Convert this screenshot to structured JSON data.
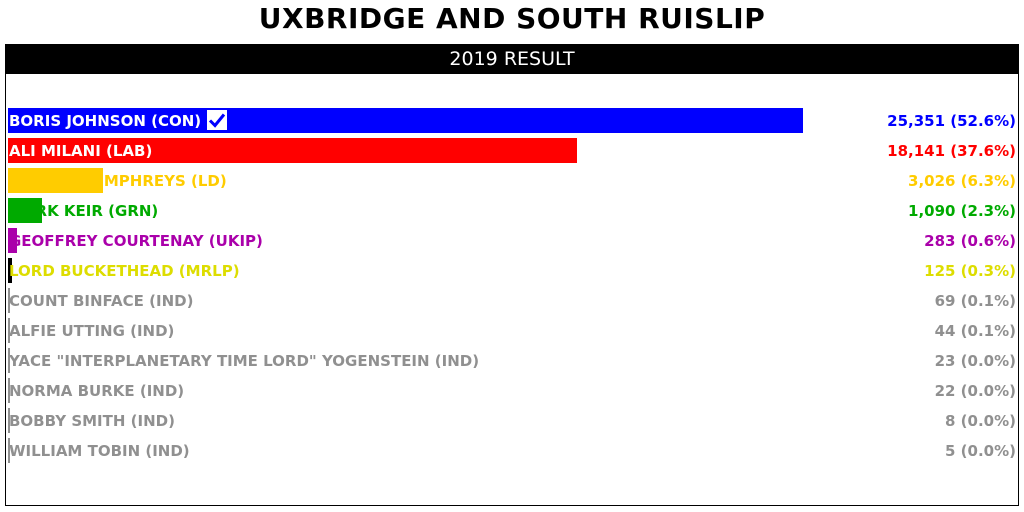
{
  "header": {
    "title": "UXBRIDGE AND SOUTH RUISLIP",
    "subtitle": "2019 RESULT"
  },
  "chart_data": {
    "type": "bar",
    "orientation": "horizontal",
    "title": "UXBRIDGE AND SOUTH RUISLIP",
    "subtitle": "2019 RESULT",
    "xlim": [
      0,
      25351
    ],
    "winner_mark": "check-icon",
    "candidates": [
      {
        "label": "BORIS JOHNSON (CON)",
        "votes": 25351,
        "value_label": "25,351 (52.6%)",
        "bar_color": "#0000ff",
        "text_color": "#ffffff",
        "value_color": "#0000ff",
        "winner": true
      },
      {
        "label": "ALI MILANI (LAB)",
        "votes": 18141,
        "value_label": "18,141 (37.6%)",
        "bar_color": "#ff0000",
        "text_color": "#ffffff",
        "value_color": "#ff0000"
      },
      {
        "label": "JOANNE HUMPHREYS (LD)",
        "votes": 3026,
        "value_label": "3,026 (6.3%)",
        "bar_color": "#ffcc00",
        "text_color": "#ffcc00",
        "value_color": "#ffcc00"
      },
      {
        "label": "MARK KEIR (GRN)",
        "votes": 1090,
        "value_label": "1,090 (2.3%)",
        "bar_color": "#00aa00",
        "text_color": "#00aa00",
        "value_color": "#00aa00"
      },
      {
        "label": "GEOFFREY COURTENAY (UKIP)",
        "votes": 283,
        "value_label": "283 (0.6%)",
        "bar_color": "#aa00aa",
        "text_color": "#aa00aa",
        "value_color": "#aa00aa"
      },
      {
        "label": "LORD BUCKETHEAD (MRLP)",
        "votes": 125,
        "value_label": "125 (0.3%)",
        "bar_color": "#000000",
        "text_color": "#dddd00",
        "value_color": "#dddd00"
      },
      {
        "label": "COUNT BINFACE (IND)",
        "votes": 69,
        "value_label": "69 (0.1%)",
        "bar_color": "#909090",
        "text_color": "#909090",
        "value_color": "#909090"
      },
      {
        "label": "ALFIE UTTING (IND)",
        "votes": 44,
        "value_label": "44 (0.1%)",
        "bar_color": "#909090",
        "text_color": "#909090",
        "value_color": "#909090"
      },
      {
        "label": "YACE \"INTERPLANETARY TIME LORD\" YOGENSTEIN (IND)",
        "votes": 23,
        "value_label": "23 (0.0%)",
        "bar_color": "#909090",
        "text_color": "#909090",
        "value_color": "#909090"
      },
      {
        "label": "NORMA BURKE (IND)",
        "votes": 22,
        "value_label": "22 (0.0%)",
        "bar_color": "#909090",
        "text_color": "#909090",
        "value_color": "#909090"
      },
      {
        "label": "BOBBY SMITH (IND)",
        "votes": 8,
        "value_label": "8 (0.0%)",
        "bar_color": "#909090",
        "text_color": "#909090",
        "value_color": "#909090"
      },
      {
        "label": "WILLIAM TOBIN (IND)",
        "votes": 5,
        "value_label": "5 (0.0%)",
        "bar_color": "#909090",
        "text_color": "#909090",
        "value_color": "#909090"
      }
    ]
  }
}
